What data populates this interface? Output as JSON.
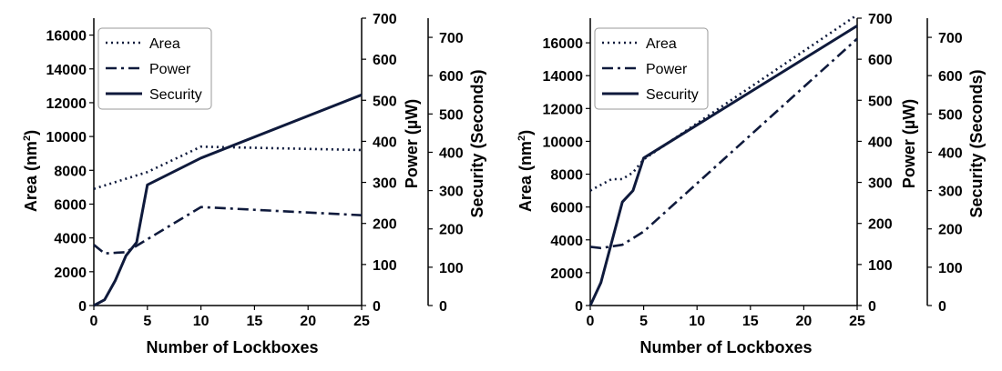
{
  "chart_data": [
    {
      "type": "line",
      "xlabel": "Number of Lockboxes",
      "x_ticks": [
        "0",
        "5",
        "10",
        "15",
        "20",
        "25"
      ],
      "xlim": [
        0,
        25
      ],
      "axes": [
        {
          "label": "Area (nm²)",
          "label_text": "Area (nm",
          "label_sup": "2",
          "label_tail": ")",
          "ylim": [
            0,
            17000
          ],
          "ticks": [
            "0",
            "2000",
            "4000",
            "6000",
            "8000",
            "10000",
            "12000",
            "14000",
            "16000"
          ]
        },
        {
          "label": "Power (µW)",
          "ylim": [
            0,
            700
          ],
          "ticks": [
            "0",
            "100",
            "200",
            "300",
            "400",
            "500",
            "600",
            "700"
          ]
        },
        {
          "label": "Security (Seconds)",
          "ylim": [
            0,
            750
          ],
          "ticks": [
            "0",
            "100",
            "200",
            "300",
            "400",
            "500",
            "600",
            "700"
          ]
        }
      ],
      "legend": [
        "Area",
        "Power",
        "Security"
      ],
      "series": [
        {
          "name": "Area",
          "axis": 0,
          "style": "dotted",
          "x": [
            0,
            5,
            10,
            25
          ],
          "y": [
            6900,
            7900,
            9400,
            9200
          ]
        },
        {
          "name": "Power",
          "axis": 1,
          "style": "dashdot",
          "x": [
            0,
            1,
            3,
            10,
            25
          ],
          "y": [
            148,
            127,
            130,
            240,
            220
          ]
        },
        {
          "name": "Security",
          "axis": 2,
          "style": "solid",
          "x": [
            0,
            1,
            2,
            3,
            4,
            5,
            10,
            25
          ],
          "y": [
            0,
            15,
            65,
            130,
            165,
            315,
            385,
            550
          ]
        }
      ]
    },
    {
      "type": "line",
      "xlabel": "Number of Lockboxes",
      "x_ticks": [
        "0",
        "5",
        "10",
        "15",
        "20",
        "25"
      ],
      "xlim": [
        0,
        25
      ],
      "axes": [
        {
          "label": "Area (nm²)",
          "label_text": "Area (nm",
          "label_sup": "2",
          "label_tail": ")",
          "ylim": [
            0,
            17500
          ],
          "ticks": [
            "0",
            "2000",
            "4000",
            "6000",
            "8000",
            "10000",
            "12000",
            "14000",
            "16000"
          ]
        },
        {
          "label": "Power (µW)",
          "ylim": [
            0,
            700
          ],
          "ticks": [
            "0",
            "100",
            "200",
            "300",
            "400",
            "500",
            "600",
            "700"
          ]
        },
        {
          "label": "Security (Seconds)",
          "ylim": [
            0,
            750
          ],
          "ticks": [
            "0",
            "100",
            "200",
            "300",
            "400",
            "500",
            "600",
            "700"
          ]
        }
      ],
      "legend": [
        "Area",
        "Power",
        "Security"
      ],
      "series": [
        {
          "name": "Area",
          "axis": 0,
          "style": "dotted",
          "x": [
            0,
            2,
            3,
            4,
            5,
            25
          ],
          "y": [
            7000,
            7700,
            7700,
            8100,
            8900,
            17700
          ]
        },
        {
          "name": "Power",
          "axis": 1,
          "style": "dashdot",
          "x": [
            0,
            1,
            3,
            5,
            25
          ],
          "y": [
            143,
            140,
            148,
            180,
            650
          ]
        },
        {
          "name": "Security",
          "axis": 2,
          "style": "solid",
          "x": [
            0,
            1,
            3,
            4,
            5,
            25
          ],
          "y": [
            0,
            60,
            270,
            300,
            385,
            730
          ]
        }
      ]
    }
  ]
}
